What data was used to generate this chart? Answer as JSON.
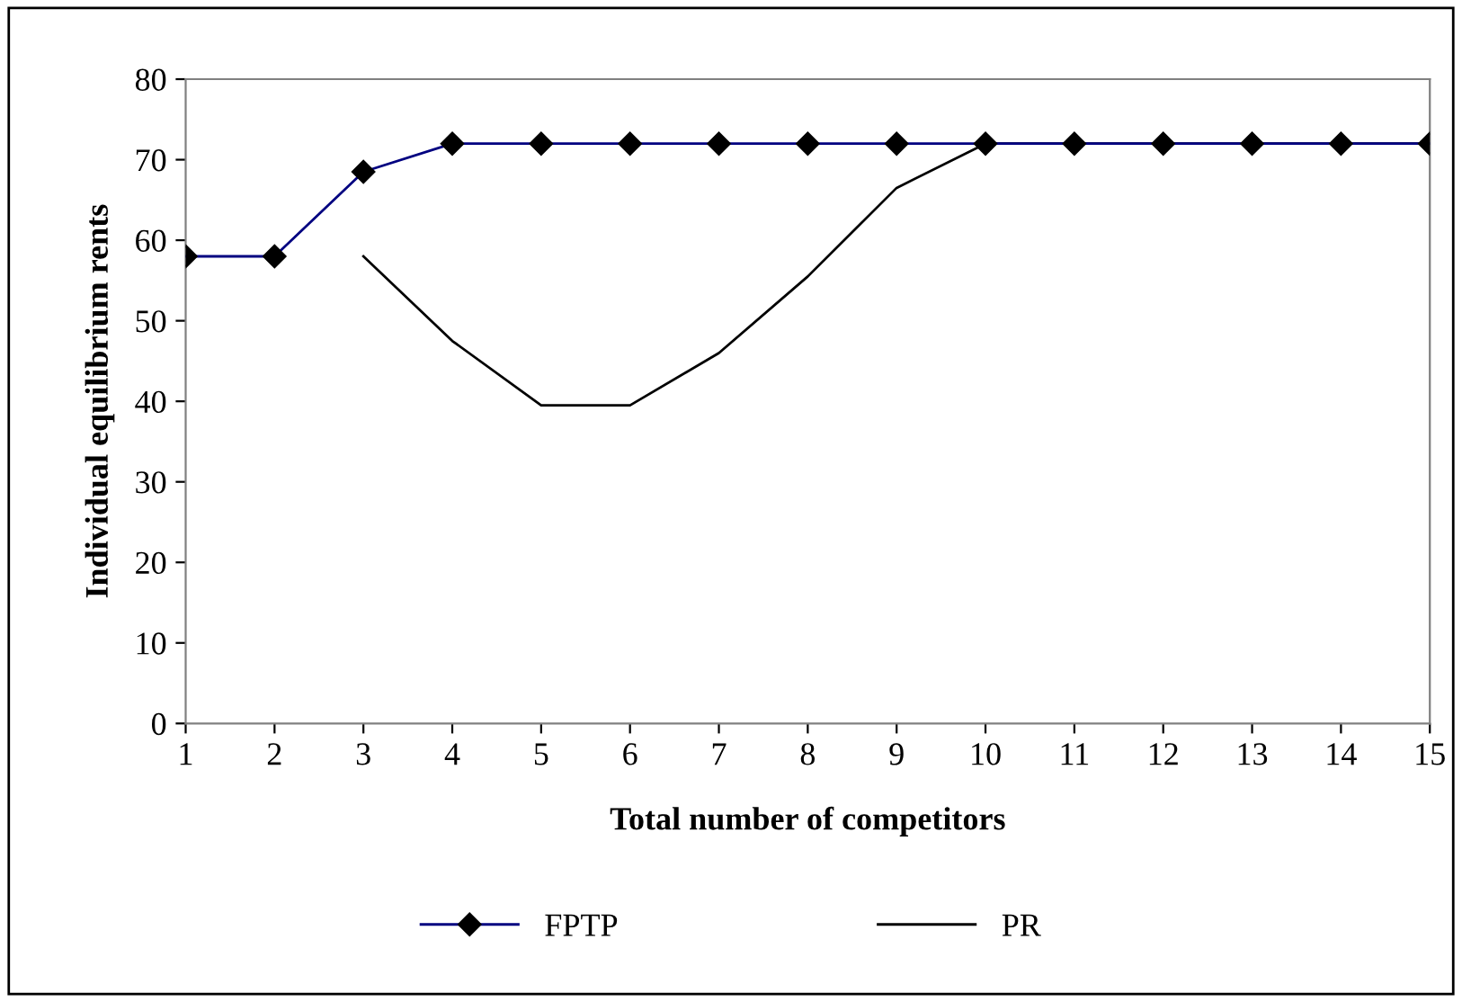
{
  "chart_data": {
    "type": "line",
    "xlabel": "Total number of competitors",
    "ylabel": "Individual equilibrium rents",
    "categories": [
      "1",
      "2",
      "3",
      "4",
      "5",
      "6",
      "7",
      "8",
      "9",
      "10",
      "11",
      "12",
      "13",
      "14",
      "15"
    ],
    "ylim": [
      0,
      80
    ],
    "yticks": [
      0,
      10,
      20,
      30,
      40,
      50,
      60,
      70,
      80
    ],
    "grid": false,
    "legend": "bottom",
    "series": [
      {
        "name": "FPTP",
        "color": "#000080",
        "marker": "diamond",
        "values": [
          58,
          58,
          68.5,
          72,
          72,
          72,
          72,
          72,
          72,
          72,
          72,
          72,
          72,
          72,
          72
        ]
      },
      {
        "name": "PR",
        "color": "#000000",
        "marker": "none",
        "values": [
          null,
          null,
          58,
          47.5,
          39.5,
          39.5,
          46,
          55.5,
          66.5,
          72,
          72,
          72,
          72,
          72,
          72
        ]
      }
    ]
  }
}
